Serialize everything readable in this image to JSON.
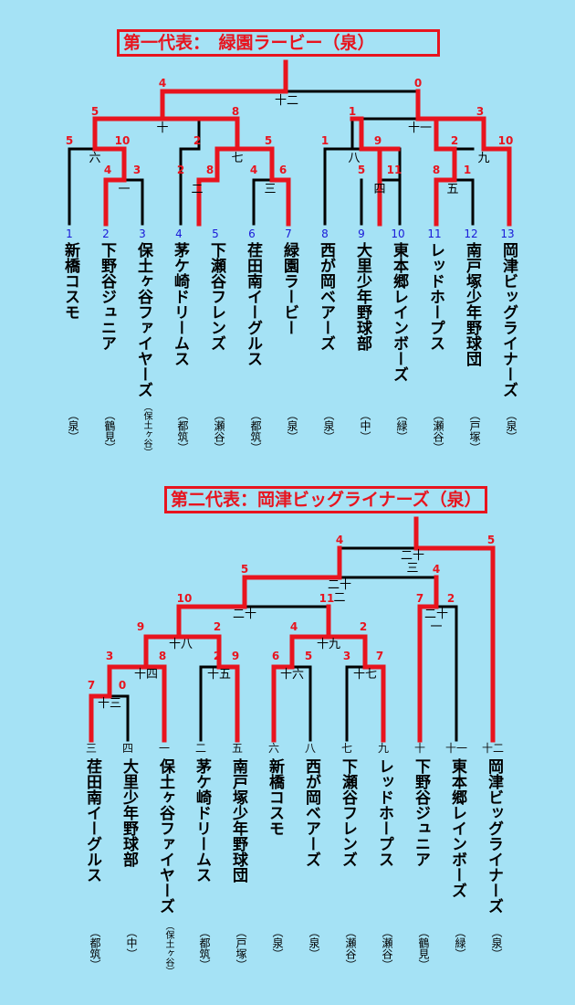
{
  "bracket1": {
    "title": "第一代表：　緑園ラービー（泉）",
    "teams": [
      {
        "num": "1",
        "name": "新橋コスモ",
        "area": "（泉）"
      },
      {
        "num": "2",
        "name": "下野谷ジュニア",
        "area": "（鶴見）"
      },
      {
        "num": "3",
        "name": "保土ヶ谷ファイヤーズ",
        "area": "（保土ヶ谷）"
      },
      {
        "num": "4",
        "name": "茅ケ崎ドリームス",
        "area": "（都筑）"
      },
      {
        "num": "5",
        "name": "下瀬谷フレンズ",
        "area": "（瀬谷）"
      },
      {
        "num": "6",
        "name": "荏田南イーグルス",
        "area": "（都筑）"
      },
      {
        "num": "7",
        "name": "緑園ラービー",
        "area": "（泉）"
      },
      {
        "num": "8",
        "name": "西が岡ベアーズ",
        "area": "（泉）"
      },
      {
        "num": "9",
        "name": "大里少年野球部",
        "area": "（中）"
      },
      {
        "num": "10",
        "name": "東本郷レインボーズ",
        "area": "（緑）"
      },
      {
        "num": "11",
        "name": "レッドホープス",
        "area": "（瀬谷）"
      },
      {
        "num": "12",
        "name": "南戸塚少年野球団",
        "area": "（戸塚）"
      },
      {
        "num": "13",
        "name": "岡津ビッグライナーズ",
        "area": "（泉）"
      }
    ],
    "match_labels": [
      "一",
      "二",
      "三",
      "四",
      "五",
      "六",
      "七",
      "八",
      "九",
      "十",
      "十一",
      "十二"
    ],
    "scores": [
      "4",
      "3",
      "2",
      "8",
      "4",
      "6",
      "5",
      "11",
      "8",
      "1",
      "5",
      "10",
      "2",
      "5",
      "1",
      "9",
      "2",
      "10",
      "5",
      "8",
      "1",
      "3",
      "4",
      "0"
    ]
  },
  "bracket2": {
    "title": "第二代表：岡津ビッグライナーズ（泉）",
    "teams": [
      {
        "num": "三",
        "name": "荏田南イーグルス",
        "area": "（都筑）"
      },
      {
        "num": "四",
        "name": "大里少年野球部",
        "area": "（中）"
      },
      {
        "num": "一",
        "name": "保土ヶ谷ファイヤーズ",
        "area": "（保土ヶ谷）"
      },
      {
        "num": "二",
        "name": "茅ケ崎ドリームス",
        "area": "（都筑）"
      },
      {
        "num": "五",
        "name": "南戸塚少年野球団",
        "area": "（戸塚）"
      },
      {
        "num": "六",
        "name": "新橋コスモ",
        "area": "（泉）"
      },
      {
        "num": "八",
        "name": "西が岡ベアーズ",
        "area": "（泉）"
      },
      {
        "num": "七",
        "name": "下瀬谷フレンズ",
        "area": "（瀬谷）"
      },
      {
        "num": "九",
        "name": "レッドホープス",
        "area": "（瀬谷）"
      },
      {
        "num": "十",
        "name": "下野谷ジュニア",
        "area": "（鶴見）"
      },
      {
        "num": "十一",
        "name": "東本郷レインボーズ",
        "area": "（緑）"
      },
      {
        "num": "十二",
        "name": "岡津ビッグライナーズ",
        "area": "（泉）"
      }
    ],
    "match_labels": [
      "十三",
      "十四",
      "十五",
      "十六",
      "十七",
      "十八",
      "十九",
      "二十",
      "二十一",
      "二十二",
      "二十三"
    ],
    "scores": [
      "7",
      "0",
      "3",
      "8",
      "2",
      "9",
      "6",
      "5",
      "3",
      "7",
      "9",
      "2",
      "4",
      "2",
      "10",
      "11",
      "7",
      "2",
      "5",
      "4",
      "4",
      "5"
    ]
  }
}
